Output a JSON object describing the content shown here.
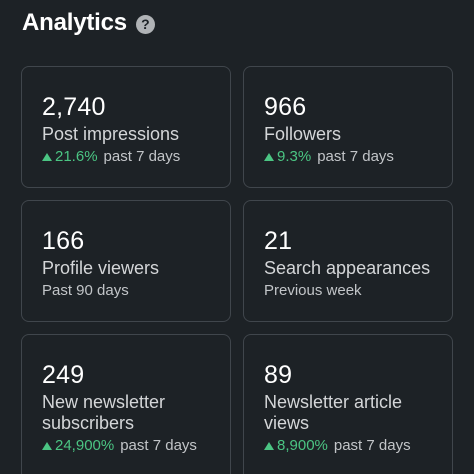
{
  "header": {
    "title": "Analytics",
    "help_icon": "question-circle-icon",
    "help_glyph": "?"
  },
  "colors": {
    "positive": "#4bc583",
    "background": "#1d2226",
    "card_border": "#40464c"
  },
  "cards": [
    {
      "value": "2,740",
      "label": "Post impressions",
      "change": "21.6%",
      "period": "past 7 days"
    },
    {
      "value": "966",
      "label": "Followers",
      "change": "9.3%",
      "period": "past 7 days"
    },
    {
      "value": "166",
      "label": "Profile viewers",
      "period": "Past 90 days"
    },
    {
      "value": "21",
      "label": "Search appearances",
      "period": "Previous week"
    },
    {
      "value": "249",
      "label": "New newsletter subscribers",
      "change": "24,900%",
      "period": "past 7 days"
    },
    {
      "value": "89",
      "label": "Newsletter article views",
      "change": "8,900%",
      "period": "past 7 days"
    }
  ]
}
